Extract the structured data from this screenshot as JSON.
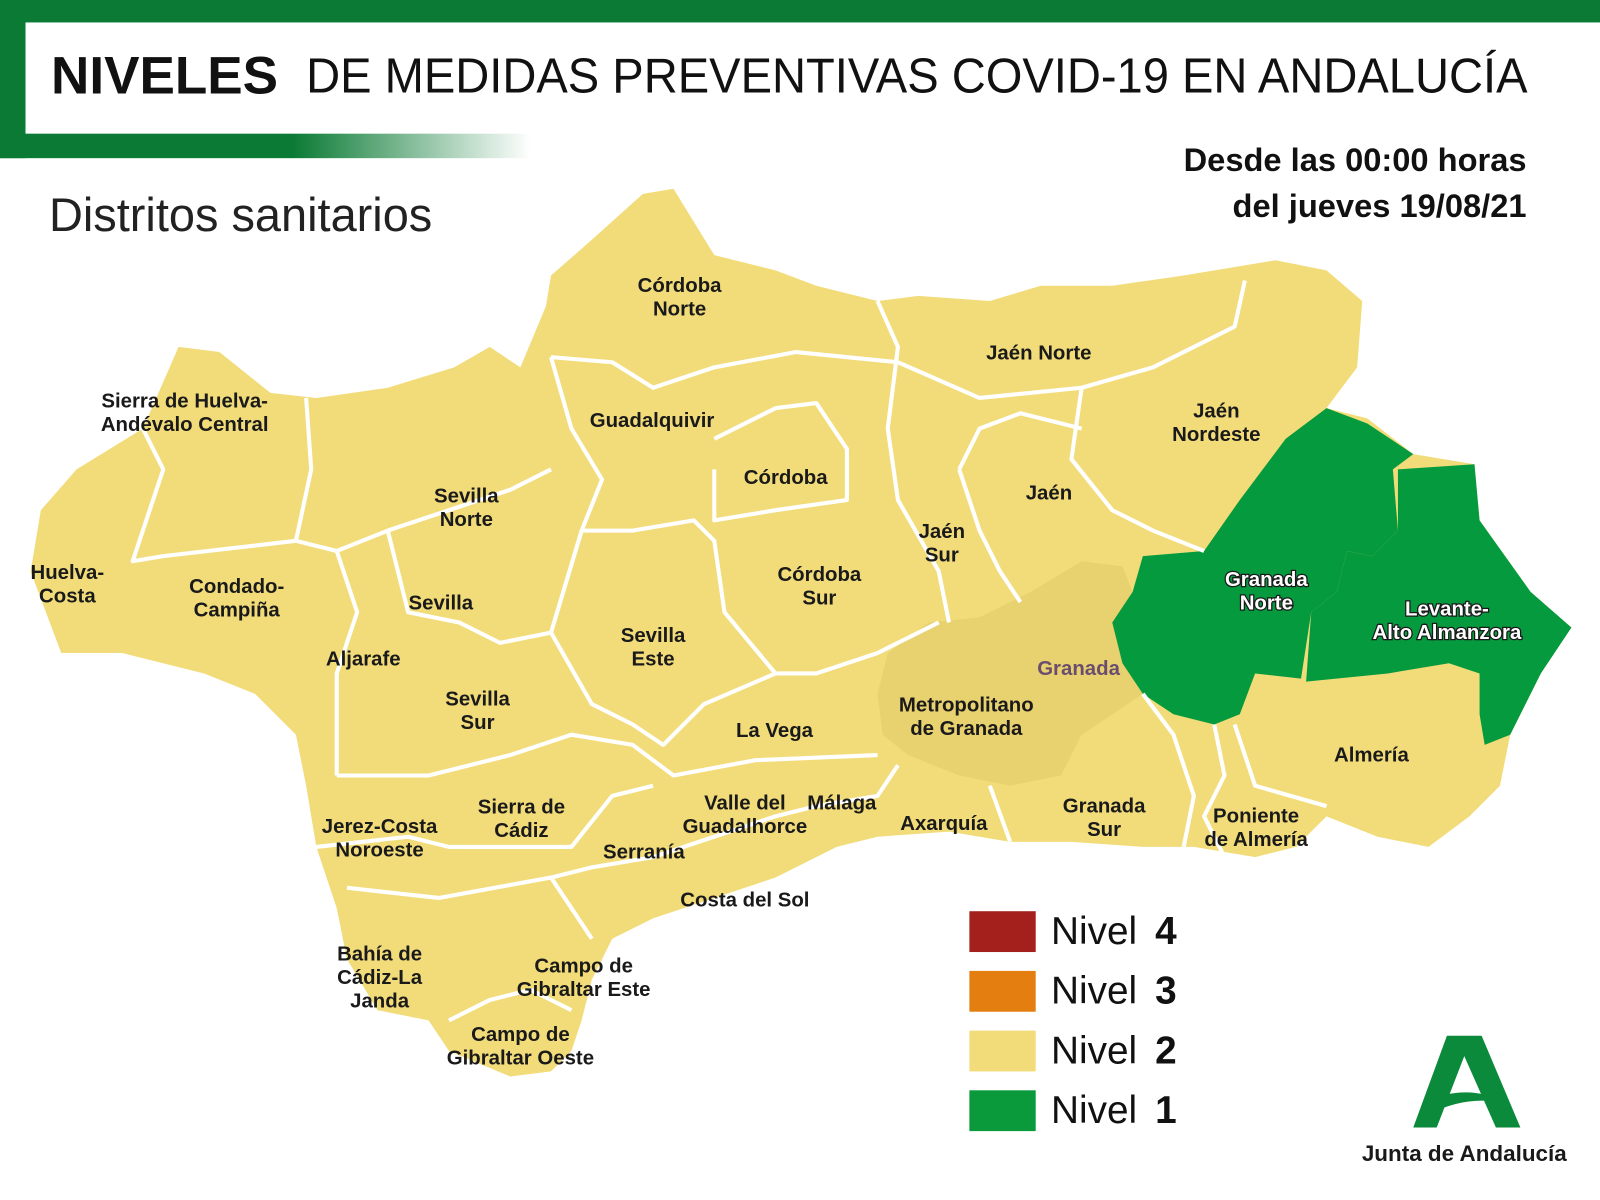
{
  "header": {
    "title_bold": "NIVELES",
    "title": "DE MEDIDAS PREVENTIVAS COVID-19 EN ANDALUCÍA",
    "subtitle": "Distritos sanitarios",
    "date": [
      "Desde las 00:00 horas",
      "del jueves 19/08/21"
    ]
  },
  "districts": [
    {
      "lines": [
        "Córdoba",
        "Norte"
      ]
    },
    {
      "lines": [
        "Jaén Norte"
      ]
    },
    {
      "lines": [
        "Sierra de Huelva-",
        "Andévalo Central"
      ]
    },
    {
      "lines": [
        "Guadalquivir"
      ]
    },
    {
      "lines": [
        "Jaén",
        "Nordeste"
      ]
    },
    {
      "lines": [
        "Córdoba"
      ]
    },
    {
      "lines": [
        "Jaén"
      ]
    },
    {
      "lines": [
        "Sevilla",
        "Norte"
      ]
    },
    {
      "lines": [
        "Jaén",
        "Sur"
      ]
    },
    {
      "lines": [
        "Huelva-",
        "Costa"
      ]
    },
    {
      "lines": [
        "Condado-",
        "Campiña"
      ]
    },
    {
      "lines": [
        "Córdoba",
        "Sur"
      ]
    },
    {
      "lines": [
        "Granada",
        "Norte"
      ]
    },
    {
      "lines": [
        "Sevilla"
      ]
    },
    {
      "lines": [
        "Levante-",
        "Alto Almanzora"
      ]
    },
    {
      "lines": [
        "Sevilla",
        "Este"
      ]
    },
    {
      "lines": [
        "Aljarafe"
      ]
    },
    {
      "lines": [
        "Sevilla",
        "Sur"
      ]
    },
    {
      "lines": [
        "Metropolitano",
        "de Granada"
      ]
    },
    {
      "lines": [
        "La Vega"
      ]
    },
    {
      "lines": [
        "Almería"
      ]
    },
    {
      "lines": [
        "Valle del",
        "Guadalhorce"
      ]
    },
    {
      "lines": [
        "Málaga"
      ]
    },
    {
      "lines": [
        "Sierra de",
        "Cádiz"
      ]
    },
    {
      "lines": [
        "Granada",
        "Sur"
      ]
    },
    {
      "lines": [
        "Poniente",
        "de Almería"
      ]
    },
    {
      "lines": [
        "Axarquía"
      ]
    },
    {
      "lines": [
        "Jerez-Costa",
        "Noroeste"
      ]
    },
    {
      "lines": [
        "Serranía"
      ]
    },
    {
      "lines": [
        "Costa del Sol"
      ]
    },
    {
      "lines": [
        "Bahía de",
        "Cádiz-La",
        "Janda"
      ]
    },
    {
      "lines": [
        "Campo de",
        "Gibraltar Este"
      ]
    },
    {
      "lines": [
        "Campo de",
        "Gibraltar Oeste"
      ]
    }
  ],
  "city": "Granada",
  "legend": [
    {
      "text": "Nivel",
      "level": 4,
      "color": "#a3201c"
    },
    {
      "text": "Nivel",
      "level": 3,
      "color": "#e57e10"
    },
    {
      "text": "Nivel",
      "level": 2,
      "color": "#f2dc7a"
    },
    {
      "text": "Nivel",
      "level": 1,
      "color": "#0a9a3c"
    }
  ],
  "logo": "Junta de Andalucía"
}
